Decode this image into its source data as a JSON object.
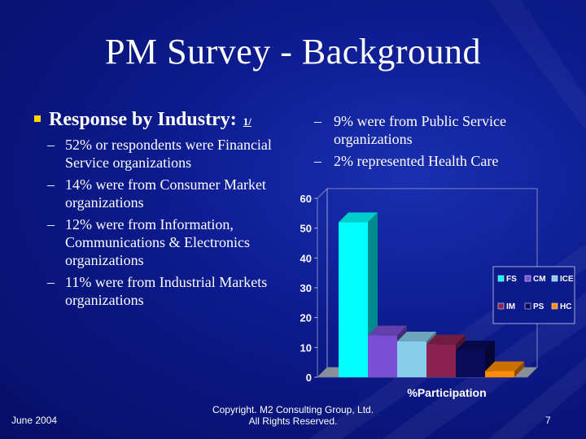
{
  "slide": {
    "title": "PM Survey - Background",
    "heading": "Response by Industry:",
    "footnote": "1/",
    "left_items": [
      "52% or respondents were Financial Service organizations",
      "14% were from Consumer Market organizations",
      "12% were from Information, Communications & Electronics organizations",
      "11% were from Industrial Markets organizations"
    ],
    "right_items": [
      "9% were from Public Service organizations",
      "2% represented Health Care"
    ],
    "footer": {
      "date": "June 2004",
      "copyright_line1": "Copyright. M2 Consulting Group, Ltd.",
      "copyright_line2": "All Rights Reserved.",
      "page": "7"
    },
    "colors": {
      "background": "#0c1a8c",
      "bullet": "#ffd700"
    }
  },
  "chart_data": {
    "type": "bar",
    "style": "3d",
    "categories": [
      "%Participation"
    ],
    "xlabel": "%Participation",
    "ylim": [
      0,
      60
    ],
    "yticks": [
      0,
      10,
      20,
      30,
      40,
      50,
      60
    ],
    "legend_position": "right",
    "series": [
      {
        "name": "FS",
        "values": [
          52
        ],
        "color": "#00ffff"
      },
      {
        "name": "CM",
        "values": [
          14
        ],
        "color": "#7a4fd6"
      },
      {
        "name": "ICE",
        "values": [
          12
        ],
        "color": "#87ceeb"
      },
      {
        "name": "IM",
        "values": [
          11
        ],
        "color": "#8b2252"
      },
      {
        "name": "PS",
        "values": [
          9
        ],
        "color": "#0a0a5a"
      },
      {
        "name": "HC",
        "values": [
          2
        ],
        "color": "#ff8c00"
      }
    ]
  }
}
